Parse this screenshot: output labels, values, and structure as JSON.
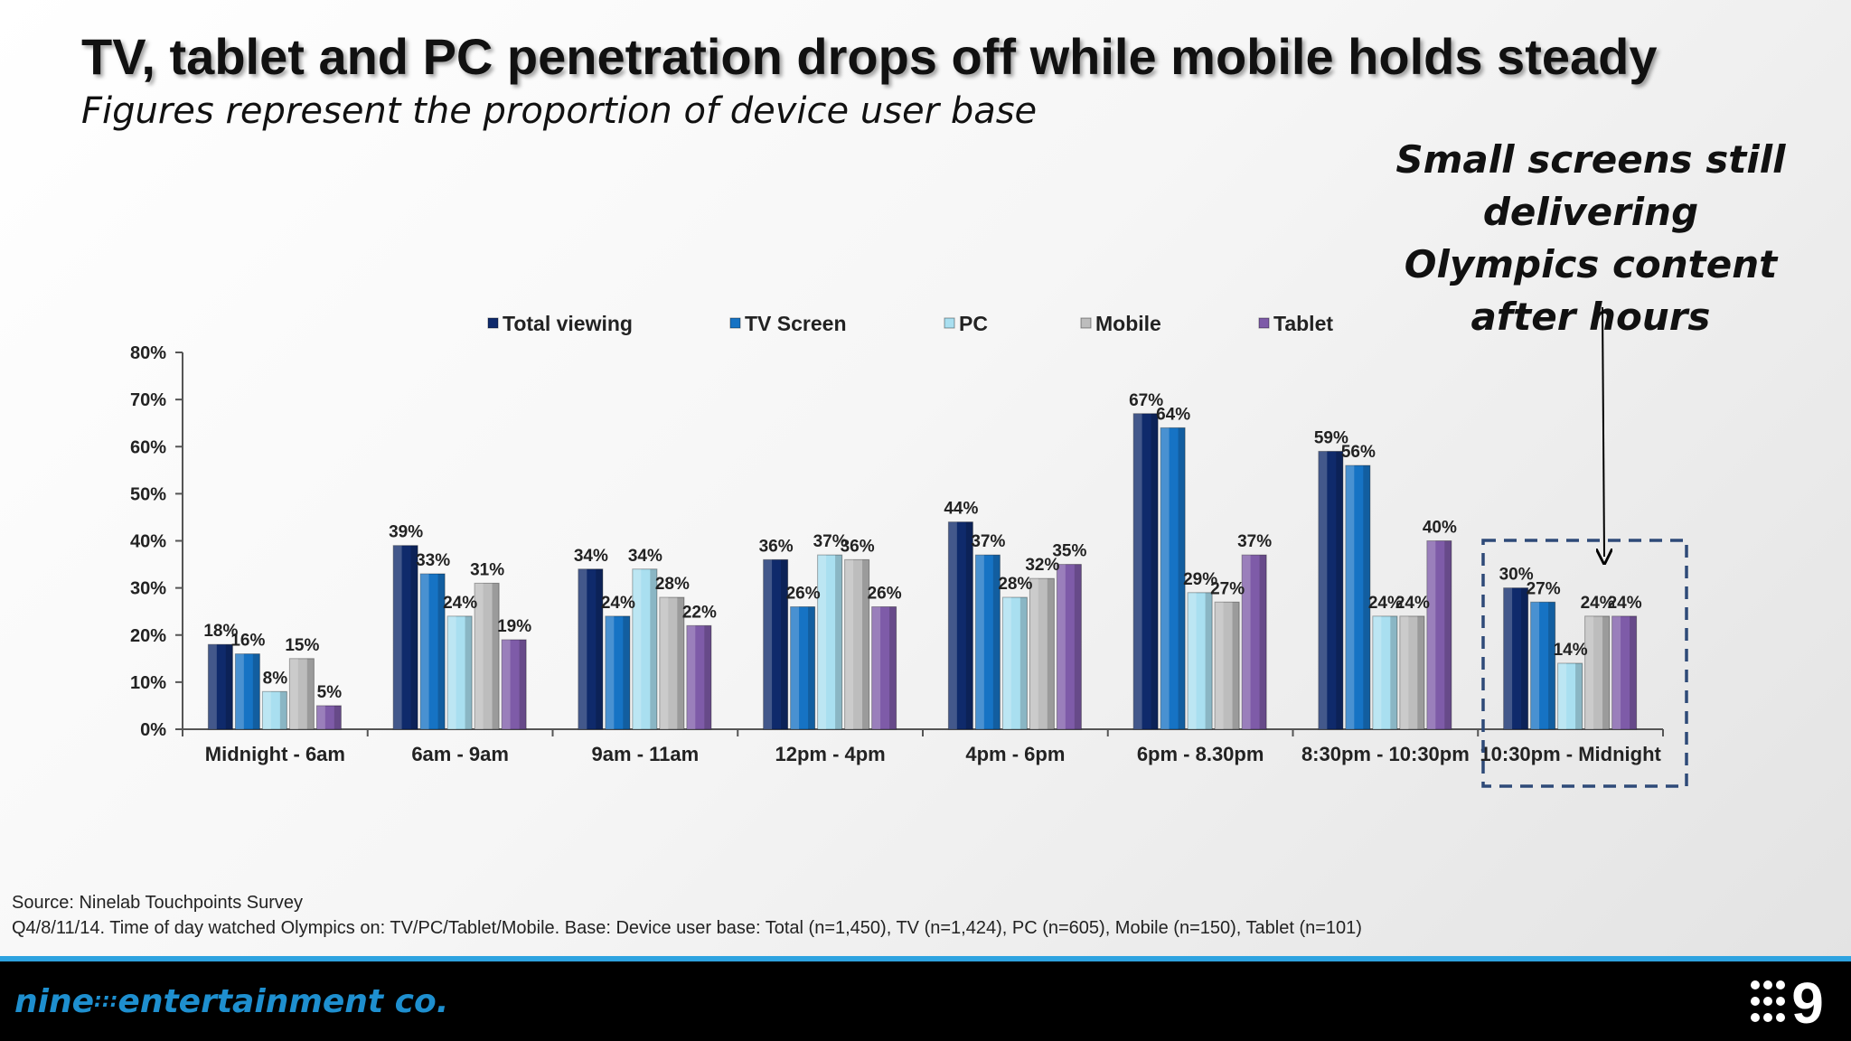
{
  "title": "TV, tablet and PC penetration drops off while mobile holds steady",
  "subtitle": "Figures represent the proportion of device user base",
  "callout": "Small screens still delivering Olympics content after hours",
  "source": "Source: Ninelab Touchpoints Survey",
  "note": "Q4/8/11/14. Time of day watched Olympics on: TV/PC/Tablet/Mobile. Base: Device user base: Total (n=1,450), TV (n=1,424), PC (n=605), Mobile (n=150), Tablet (n=101)",
  "footer": {
    "brand": "nine",
    "brand_dots": ":::",
    "brand_rest": "entertainment co.",
    "logo": "9",
    "logo_icon": "nine-network-logo-icon"
  },
  "chart_data": {
    "type": "bar",
    "categories": [
      "Midnight - 6am",
      "6am - 9am",
      "9am - 11am",
      "12pm - 4pm",
      "4pm - 6pm",
      "6pm - 8.30pm",
      "8:30pm - 10:30pm",
      "10:30pm - Midnight"
    ],
    "series": [
      {
        "name": "Total viewing",
        "color": "#0f2a6b",
        "values": [
          18,
          39,
          34,
          36,
          44,
          67,
          59,
          30
        ]
      },
      {
        "name": "TV Screen",
        "color": "#1673c4",
        "values": [
          16,
          33,
          24,
          26,
          37,
          64,
          56,
          27
        ]
      },
      {
        "name": "PC",
        "color": "#a9dff0",
        "values": [
          8,
          24,
          34,
          37,
          28,
          29,
          24,
          14
        ]
      },
      {
        "name": "Mobile",
        "color": "#bdbdbd",
        "values": [
          15,
          31,
          28,
          36,
          32,
          27,
          24,
          24
        ]
      },
      {
        "name": "Tablet",
        "color": "#7e5ba8",
        "values": [
          5,
          19,
          22,
          26,
          35,
          37,
          40,
          24
        ]
      }
    ],
    "yticks": [
      "0%",
      "10%",
      "20%",
      "30%",
      "40%",
      "50%",
      "60%",
      "70%",
      "80%"
    ],
    "ylim": [
      0,
      80
    ],
    "value_suffix": "%",
    "legend_position": "top",
    "highlight_category": "10:30pm - Midnight",
    "grid": false
  }
}
